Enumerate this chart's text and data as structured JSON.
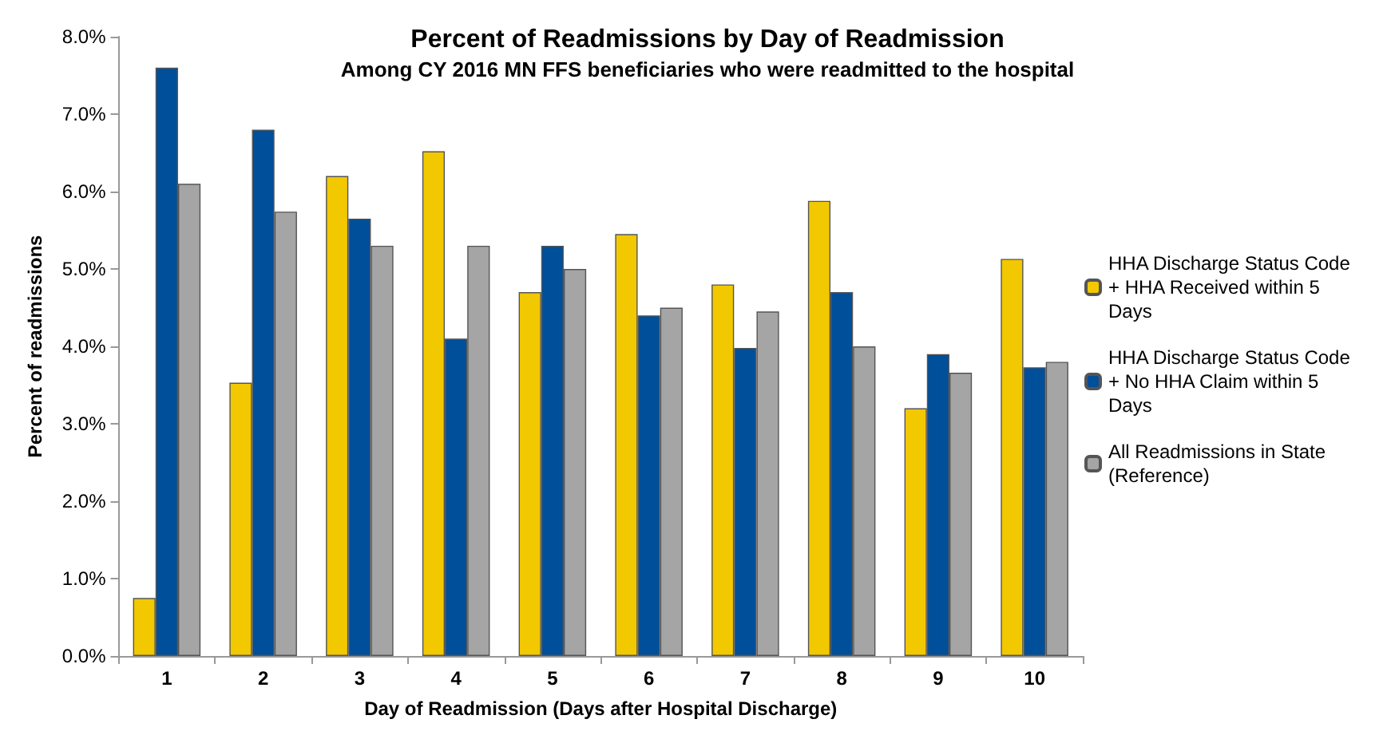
{
  "chart_data": {
    "type": "bar",
    "title": "Percent of Readmissions by Day of Readmission",
    "subtitle": "Among CY 2016 MN FFS beneficiaries who were readmitted to the hospital",
    "xlabel": "Day of Readmission (Days after Hospital Discharge)",
    "ylabel": "Percent of readmissions",
    "categories": [
      "1",
      "2",
      "3",
      "4",
      "5",
      "6",
      "7",
      "8",
      "9",
      "10"
    ],
    "series": [
      {
        "name": "HHA Discharge Status Code + HHA Received within 5 Days",
        "color": "#f2c800",
        "values": [
          0.75,
          3.53,
          6.2,
          6.52,
          4.7,
          5.45,
          4.8,
          5.88,
          3.2,
          5.13
        ]
      },
      {
        "name": "HHA Discharge Status Code + No HHA Claim within 5 Days",
        "color": "#004f9a",
        "values": [
          7.6,
          6.8,
          5.65,
          4.1,
          5.3,
          4.4,
          3.98,
          4.7,
          3.9,
          3.73
        ]
      },
      {
        "name": "All Readmissions in State (Reference)",
        "color": "#a5a5a5",
        "values": [
          6.1,
          5.74,
          5.3,
          5.3,
          5.0,
          4.5,
          4.45,
          4.0,
          3.66,
          3.8
        ]
      }
    ],
    "ylim": [
      0,
      8
    ],
    "yticks": [
      {
        "value": 0,
        "label": "0.0%"
      },
      {
        "value": 1,
        "label": "1.0%"
      },
      {
        "value": 2,
        "label": "2.0%"
      },
      {
        "value": 3,
        "label": "3.0%"
      },
      {
        "value": 4,
        "label": "4.0%"
      },
      {
        "value": 5,
        "label": "5.0%"
      },
      {
        "value": 6,
        "label": "6.0%"
      },
      {
        "value": 7,
        "label": "7.0%"
      },
      {
        "value": 8,
        "label": "8.0%"
      }
    ],
    "grid": false,
    "legend": "right"
  }
}
